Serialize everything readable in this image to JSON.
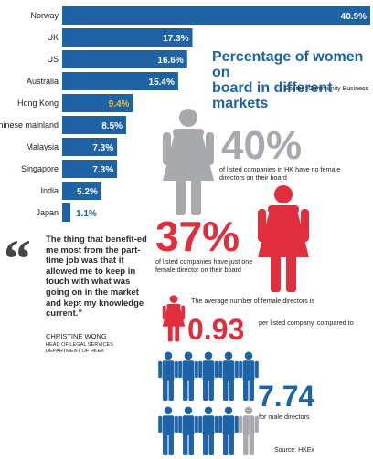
{
  "chart_data": {
    "type": "bar",
    "orientation": "horizontal",
    "title": "Percentage of women on board in different markets",
    "title_lines": [
      "Percentage of women on",
      "board in different markets"
    ],
    "source": "Source: Community Business",
    "categories": [
      "Norway",
      "UK",
      "US",
      "Australia",
      "Hong Kong",
      "Chinese mainland",
      "Malaysia",
      "Singapore",
      "India",
      "Japan"
    ],
    "values": [
      40.9,
      17.3,
      16.6,
      15.4,
      9.4,
      8.5,
      7.3,
      7.3,
      5.2,
      1.1
    ],
    "value_labels": [
      "40.9%",
      "17.3%",
      "16.6%",
      "15.4%",
      "9.4%",
      "8.5%",
      "7.3%",
      "7.3%",
      "5.2%",
      "1.1%"
    ],
    "highlight_category": "Hong Kong",
    "xlim": [
      0,
      40.9
    ],
    "grid": false,
    "colors": {
      "bar": "#1d63a5",
      "label_in_bar": "#ffffff",
      "highlight_label": "#f4b72a",
      "label_outside": "#1d63a5"
    }
  },
  "stats": {
    "no_female": {
      "value": "40%",
      "text": "of listed companies in HK have no female directors on their board"
    },
    "one_female": {
      "value": "37%",
      "text": "of listed companies have just one female director on their board"
    },
    "avg_female": {
      "intro": "The average number of female directors is",
      "value": "0.93",
      "text": "per listed company, compared to"
    },
    "avg_male": {
      "value": "7.74",
      "text": "for male directors"
    },
    "source": "Source: HKEx"
  },
  "quote": {
    "mark": "“",
    "text": "The thing that benefit-ed me most from the part-time job was that it allowed me to keep in touch with what was going on in the market and kept my knowledge current.”",
    "name": "CHRISTINE WONG",
    "role_line1": "HEAD OF LEGAL SERVICES",
    "role_line2": "DEPARTMENT OF HKEX"
  },
  "colors": {
    "grey": "#a7a9ac",
    "red": "#e02e3d",
    "blue": "#1d63a5"
  },
  "icons": {
    "woman_grey": "woman-icon",
    "woman_red": "woman-icon",
    "man_blue": "man-icon",
    "man_grey": "man-icon"
  }
}
